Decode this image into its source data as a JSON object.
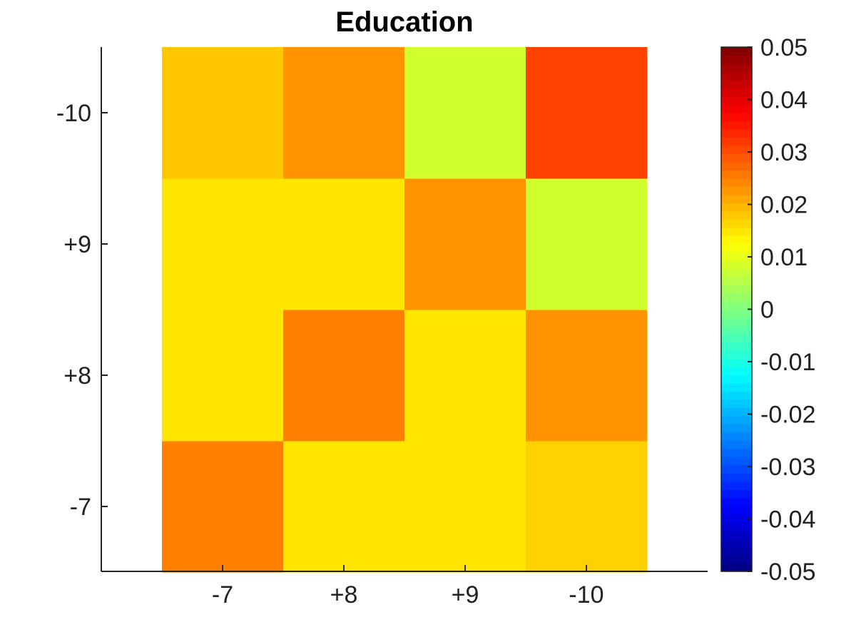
{
  "chart_data": {
    "type": "heatmap",
    "title": "Education",
    "x_categories": [
      "-7",
      "+8",
      "+9",
      "-10"
    ],
    "y_categories": [
      "-7",
      "+8",
      "+9",
      "-10"
    ],
    "values": [
      [
        0.025,
        0.015,
        0.015,
        0.017
      ],
      [
        0.015,
        0.025,
        0.015,
        0.023
      ],
      [
        0.015,
        0.015,
        0.023,
        0.008
      ],
      [
        0.018,
        0.023,
        0.008,
        0.031
      ]
    ],
    "values_layout": "rows follow y_categories from bottom to top; columns follow x_categories left to right",
    "colorbar": {
      "min": -0.05,
      "max": 0.05,
      "colormap": "jet",
      "tick_labels": [
        "0.05",
        "0.04",
        "0.03",
        "0.02",
        "0.01",
        "0",
        "-0.01",
        "-0.02",
        "-0.03",
        "-0.04",
        "-0.05"
      ],
      "tick_values": [
        0.05,
        0.04,
        0.03,
        0.02,
        0.01,
        0,
        -0.01,
        -0.02,
        -0.03,
        -0.04,
        -0.05
      ],
      "placement": "right"
    },
    "grid": false
  }
}
